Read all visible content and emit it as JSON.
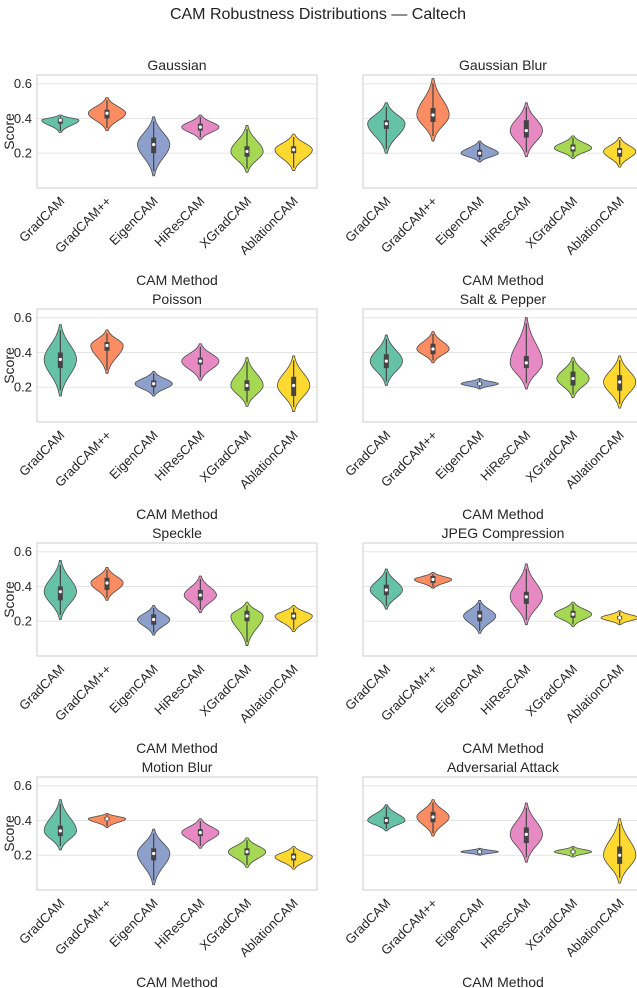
{
  "figure_title": "CAM Robustness Distributions — Caltech",
  "chart_data": [
    {
      "type": "violin",
      "title": "Gaussian",
      "xlabel": "CAM Method",
      "ylabel": "Score",
      "ylim": [
        0.0,
        0.65
      ],
      "yticks": [
        0.2,
        0.4,
        0.6
      ],
      "categories": [
        "GradCAM",
        "GradCAM++",
        "EigenCAM",
        "HiResCAM",
        "XGradCAM",
        "AblationCAM"
      ],
      "colors": [
        "#66c2a5",
        "#fc8d62",
        "#8da0cb",
        "#e78ac3",
        "#a6d854",
        "#ffd92f"
      ],
      "series": [
        {
          "name": "GradCAM",
          "min": 0.32,
          "q1": 0.37,
          "median": 0.39,
          "q3": 0.4,
          "max": 0.42
        },
        {
          "name": "GradCAM++",
          "min": 0.33,
          "q1": 0.4,
          "median": 0.43,
          "q3": 0.45,
          "max": 0.52
        },
        {
          "name": "EigenCAM",
          "min": 0.07,
          "q1": 0.2,
          "median": 0.25,
          "q3": 0.29,
          "max": 0.41
        },
        {
          "name": "HiResCAM",
          "min": 0.28,
          "q1": 0.33,
          "median": 0.35,
          "q3": 0.37,
          "max": 0.42
        },
        {
          "name": "XGradCAM",
          "min": 0.09,
          "q1": 0.18,
          "median": 0.21,
          "q3": 0.24,
          "max": 0.36
        },
        {
          "name": "AblationCAM",
          "min": 0.1,
          "q1": 0.2,
          "median": 0.22,
          "q3": 0.24,
          "max": 0.31
        }
      ]
    },
    {
      "type": "violin",
      "title": "Gaussian Blur",
      "xlabel": "CAM Method",
      "ylabel": "",
      "ylim": [
        0.0,
        0.65
      ],
      "yticks": [
        0.2,
        0.4,
        0.6
      ],
      "categories": [
        "GradCAM",
        "GradCAM++",
        "EigenCAM",
        "HiResCAM",
        "XGradCAM",
        "AblationCAM"
      ],
      "colors": [
        "#66c2a5",
        "#fc8d62",
        "#8da0cb",
        "#e78ac3",
        "#a6d854",
        "#ffd92f"
      ],
      "series": [
        {
          "name": "GradCAM",
          "min": 0.2,
          "q1": 0.34,
          "median": 0.37,
          "q3": 0.39,
          "max": 0.49
        },
        {
          "name": "GradCAM++",
          "min": 0.27,
          "q1": 0.38,
          "median": 0.42,
          "q3": 0.46,
          "max": 0.63
        },
        {
          "name": "EigenCAM",
          "min": 0.15,
          "q1": 0.18,
          "median": 0.2,
          "q3": 0.22,
          "max": 0.27
        },
        {
          "name": "HiResCAM",
          "min": 0.18,
          "q1": 0.29,
          "median": 0.33,
          "q3": 0.39,
          "max": 0.49
        },
        {
          "name": "XGradCAM",
          "min": 0.17,
          "q1": 0.21,
          "median": 0.23,
          "q3": 0.25,
          "max": 0.3
        },
        {
          "name": "AblationCAM",
          "min": 0.12,
          "q1": 0.18,
          "median": 0.21,
          "q3": 0.23,
          "max": 0.29
        }
      ]
    },
    {
      "type": "violin",
      "title": "Poisson",
      "xlabel": "CAM Method",
      "ylabel": "Score",
      "ylim": [
        0.0,
        0.65
      ],
      "yticks": [
        0.2,
        0.4,
        0.6
      ],
      "categories": [
        "GradCAM",
        "GradCAM++",
        "EigenCAM",
        "HiResCAM",
        "XGradCAM",
        "AblationCAM"
      ],
      "colors": [
        "#66c2a5",
        "#fc8d62",
        "#8da0cb",
        "#e78ac3",
        "#a6d854",
        "#ffd92f"
      ],
      "series": [
        {
          "name": "GradCAM",
          "min": 0.15,
          "q1": 0.31,
          "median": 0.36,
          "q3": 0.4,
          "max": 0.56
        },
        {
          "name": "GradCAM++",
          "min": 0.28,
          "q1": 0.41,
          "median": 0.44,
          "q3": 0.46,
          "max": 0.53
        },
        {
          "name": "EigenCAM",
          "min": 0.15,
          "q1": 0.2,
          "median": 0.22,
          "q3": 0.24,
          "max": 0.29
        },
        {
          "name": "HiResCAM",
          "min": 0.24,
          "q1": 0.33,
          "median": 0.35,
          "q3": 0.37,
          "max": 0.45
        },
        {
          "name": "XGradCAM",
          "min": 0.09,
          "q1": 0.18,
          "median": 0.21,
          "q3": 0.24,
          "max": 0.37
        },
        {
          "name": "AblationCAM",
          "min": 0.06,
          "q1": 0.15,
          "median": 0.21,
          "q3": 0.26,
          "max": 0.38
        }
      ]
    },
    {
      "type": "violin",
      "title": "Salt & Pepper",
      "xlabel": "CAM Method",
      "ylabel": "",
      "ylim": [
        0.0,
        0.65
      ],
      "yticks": [
        0.2,
        0.4,
        0.6
      ],
      "categories": [
        "GradCAM",
        "GradCAM++",
        "EigenCAM",
        "HiResCAM",
        "XGradCAM",
        "AblationCAM"
      ],
      "colors": [
        "#66c2a5",
        "#fc8d62",
        "#8da0cb",
        "#e78ac3",
        "#a6d854",
        "#ffd92f"
      ],
      "series": [
        {
          "name": "GradCAM",
          "min": 0.21,
          "q1": 0.31,
          "median": 0.35,
          "q3": 0.39,
          "max": 0.5
        },
        {
          "name": "GradCAM++",
          "min": 0.34,
          "q1": 0.39,
          "median": 0.42,
          "q3": 0.45,
          "max": 0.52
        },
        {
          "name": "EigenCAM",
          "min": 0.19,
          "q1": 0.21,
          "median": 0.22,
          "q3": 0.23,
          "max": 0.25
        },
        {
          "name": "HiResCAM",
          "min": 0.19,
          "q1": 0.31,
          "median": 0.34,
          "q3": 0.38,
          "max": 0.6
        },
        {
          "name": "XGradCAM",
          "min": 0.14,
          "q1": 0.21,
          "median": 0.25,
          "q3": 0.29,
          "max": 0.37
        },
        {
          "name": "AblationCAM",
          "min": 0.08,
          "q1": 0.18,
          "median": 0.23,
          "q3": 0.27,
          "max": 0.38
        }
      ]
    },
    {
      "type": "violin",
      "title": "Speckle",
      "xlabel": "CAM Method",
      "ylabel": "Score",
      "ylim": [
        0.0,
        0.65
      ],
      "yticks": [
        0.2,
        0.4,
        0.6
      ],
      "categories": [
        "GradCAM",
        "GradCAM++",
        "EigenCAM",
        "HiResCAM",
        "XGradCAM",
        "AblationCAM"
      ],
      "colors": [
        "#66c2a5",
        "#fc8d62",
        "#8da0cb",
        "#e78ac3",
        "#a6d854",
        "#ffd92f"
      ],
      "series": [
        {
          "name": "GradCAM",
          "min": 0.21,
          "q1": 0.32,
          "median": 0.37,
          "q3": 0.4,
          "max": 0.55
        },
        {
          "name": "GradCAM++",
          "min": 0.32,
          "q1": 0.38,
          "median": 0.42,
          "q3": 0.45,
          "max": 0.51
        },
        {
          "name": "EigenCAM",
          "min": 0.12,
          "q1": 0.18,
          "median": 0.21,
          "q3": 0.24,
          "max": 0.29
        },
        {
          "name": "HiResCAM",
          "min": 0.25,
          "q1": 0.32,
          "median": 0.35,
          "q3": 0.38,
          "max": 0.46
        },
        {
          "name": "XGradCAM",
          "min": 0.06,
          "q1": 0.2,
          "median": 0.23,
          "q3": 0.26,
          "max": 0.31
        },
        {
          "name": "AblationCAM",
          "min": 0.14,
          "q1": 0.21,
          "median": 0.23,
          "q3": 0.25,
          "max": 0.29
        }
      ]
    },
    {
      "type": "violin",
      "title": "JPEG Compression",
      "xlabel": "CAM Method",
      "ylabel": "",
      "ylim": [
        0.0,
        0.65
      ],
      "yticks": [
        0.2,
        0.4,
        0.6
      ],
      "categories": [
        "GradCAM",
        "GradCAM++",
        "EigenCAM",
        "HiResCAM",
        "XGradCAM",
        "AblationCAM"
      ],
      "colors": [
        "#66c2a5",
        "#fc8d62",
        "#8da0cb",
        "#e78ac3",
        "#a6d854",
        "#ffd92f"
      ],
      "series": [
        {
          "name": "GradCAM",
          "min": 0.27,
          "q1": 0.35,
          "median": 0.38,
          "q3": 0.41,
          "max": 0.5
        },
        {
          "name": "GradCAM++",
          "min": 0.39,
          "q1": 0.42,
          "median": 0.44,
          "q3": 0.46,
          "max": 0.48
        },
        {
          "name": "EigenCAM",
          "min": 0.13,
          "q1": 0.2,
          "median": 0.23,
          "q3": 0.26,
          "max": 0.32
        },
        {
          "name": "HiResCAM",
          "min": 0.18,
          "q1": 0.3,
          "median": 0.34,
          "q3": 0.37,
          "max": 0.53
        },
        {
          "name": "XGradCAM",
          "min": 0.17,
          "q1": 0.22,
          "median": 0.24,
          "q3": 0.26,
          "max": 0.31
        },
        {
          "name": "AblationCAM",
          "min": 0.18,
          "q1": 0.21,
          "median": 0.22,
          "q3": 0.23,
          "max": 0.26
        }
      ]
    },
    {
      "type": "violin",
      "title": "Motion Blur",
      "xlabel": "CAM Method",
      "ylabel": "Score",
      "ylim": [
        0.0,
        0.65
      ],
      "yticks": [
        0.2,
        0.4,
        0.6
      ],
      "categories": [
        "GradCAM",
        "GradCAM++",
        "EigenCAM",
        "HiResCAM",
        "XGradCAM",
        "AblationCAM"
      ],
      "colors": [
        "#66c2a5",
        "#fc8d62",
        "#8da0cb",
        "#e78ac3",
        "#a6d854",
        "#ffd92f"
      ],
      "series": [
        {
          "name": "GradCAM",
          "min": 0.23,
          "q1": 0.31,
          "median": 0.34,
          "q3": 0.37,
          "max": 0.52
        },
        {
          "name": "GradCAM++",
          "min": 0.36,
          "q1": 0.4,
          "median": 0.41,
          "q3": 0.42,
          "max": 0.44
        },
        {
          "name": "EigenCAM",
          "min": 0.03,
          "q1": 0.17,
          "median": 0.21,
          "q3": 0.24,
          "max": 0.35
        },
        {
          "name": "HiResCAM",
          "min": 0.24,
          "q1": 0.31,
          "median": 0.33,
          "q3": 0.35,
          "max": 0.41
        },
        {
          "name": "XGradCAM",
          "min": 0.13,
          "q1": 0.2,
          "median": 0.22,
          "q3": 0.24,
          "max": 0.3
        },
        {
          "name": "AblationCAM",
          "min": 0.12,
          "q1": 0.17,
          "median": 0.19,
          "q3": 0.21,
          "max": 0.25
        }
      ]
    },
    {
      "type": "violin",
      "title": "Adversarial Attack",
      "xlabel": "CAM Method",
      "ylabel": "",
      "ylim": [
        0.0,
        0.65
      ],
      "yticks": [
        0.2,
        0.4,
        0.6
      ],
      "categories": [
        "GradCAM",
        "GradCAM++",
        "EigenCAM",
        "HiResCAM",
        "XGradCAM",
        "AblationCAM"
      ],
      "colors": [
        "#66c2a5",
        "#fc8d62",
        "#8da0cb",
        "#e78ac3",
        "#a6d854",
        "#ffd92f"
      ],
      "series": [
        {
          "name": "GradCAM",
          "min": 0.34,
          "q1": 0.38,
          "median": 0.4,
          "q3": 0.42,
          "max": 0.49
        },
        {
          "name": "GradCAM++",
          "min": 0.31,
          "q1": 0.39,
          "median": 0.42,
          "q3": 0.45,
          "max": 0.52
        },
        {
          "name": "EigenCAM",
          "min": 0.2,
          "q1": 0.21,
          "median": 0.22,
          "q3": 0.23,
          "max": 0.24
        },
        {
          "name": "HiResCAM",
          "min": 0.16,
          "q1": 0.27,
          "median": 0.32,
          "q3": 0.36,
          "max": 0.5
        },
        {
          "name": "XGradCAM",
          "min": 0.19,
          "q1": 0.21,
          "median": 0.22,
          "q3": 0.23,
          "max": 0.25
        },
        {
          "name": "AblationCAM",
          "min": 0.04,
          "q1": 0.15,
          "median": 0.2,
          "q3": 0.25,
          "max": 0.41
        }
      ]
    }
  ]
}
